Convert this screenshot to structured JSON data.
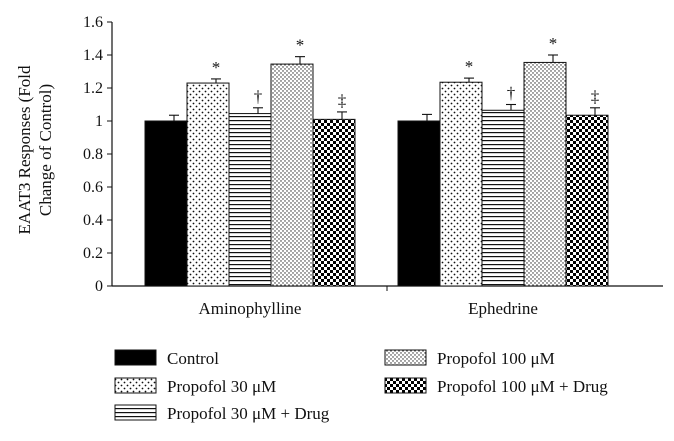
{
  "chart_data": {
    "type": "bar",
    "ylabel_lines": [
      "EAAT3 Responses (Fold",
      "Change of Control)"
    ],
    "ylim": [
      0,
      1.6
    ],
    "yticks": [
      "0",
      "0.2",
      "0.4",
      "0.6",
      "0.8",
      "1",
      "1.2",
      "1.4",
      "1.6"
    ],
    "categories": [
      "Aminophylline",
      "Ephedrine"
    ],
    "grid": false,
    "legend_position": "bottom",
    "series": [
      {
        "name": "Control",
        "pattern": "solid",
        "values": [
          1.0,
          1.0
        ],
        "errors": [
          0.035,
          0.04
        ],
        "annotations": [
          "",
          ""
        ]
      },
      {
        "name": "Propofol 30 μM",
        "pattern": "dots",
        "values": [
          1.23,
          1.235
        ],
        "errors": [
          0.025,
          0.025
        ],
        "annotations": [
          "*",
          "*"
        ]
      },
      {
        "name": "Propofol 30 μM + Drug",
        "pattern": "hlines",
        "values": [
          1.045,
          1.065
        ],
        "errors": [
          0.035,
          0.035
        ],
        "annotations": [
          "†",
          "†"
        ]
      },
      {
        "name": "Propofol 100 μM",
        "pattern": "fine-dots",
        "values": [
          1.345,
          1.355
        ],
        "errors": [
          0.045,
          0.045
        ],
        "annotations": [
          "*",
          "*"
        ]
      },
      {
        "name": "Propofol 100 μM + Drug",
        "pattern": "checker",
        "values": [
          1.01,
          1.035
        ],
        "errors": [
          0.045,
          0.045
        ],
        "annotations": [
          "‡",
          "‡"
        ]
      }
    ]
  }
}
